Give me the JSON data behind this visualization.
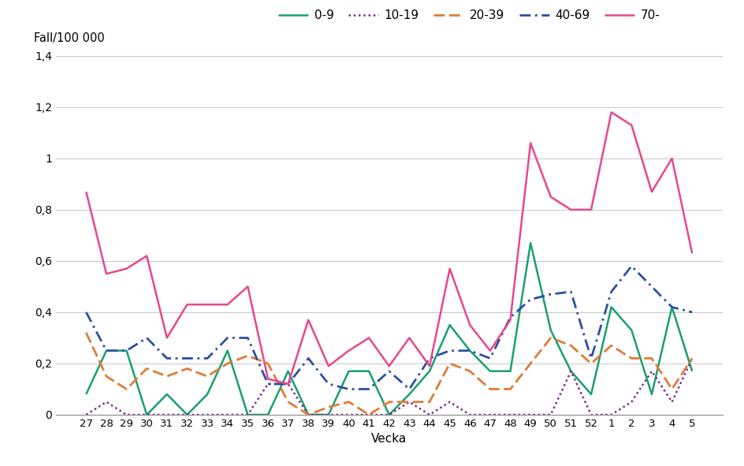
{
  "weeks": [
    "27",
    "28",
    "29",
    "30",
    "31",
    "32",
    "33",
    "34",
    "35",
    "36",
    "37",
    "38",
    "39",
    "40",
    "41",
    "42",
    "43",
    "44",
    "45",
    "46",
    "47",
    "48",
    "49",
    "50",
    "51",
    "52",
    "1",
    "2",
    "3",
    "4",
    "5"
  ],
  "series": {
    "0-9": [
      0.08,
      0.25,
      0.25,
      0.0,
      0.08,
      0.0,
      0.08,
      0.25,
      0.0,
      0.0,
      0.17,
      0.0,
      0.0,
      0.17,
      0.17,
      0.0,
      0.08,
      0.17,
      0.35,
      0.25,
      0.17,
      0.17,
      0.67,
      0.33,
      0.17,
      0.08,
      0.42,
      0.33,
      0.08,
      0.42,
      0.17
    ],
    "10-19": [
      0.0,
      0.05,
      0.0,
      0.0,
      0.0,
      0.0,
      0.0,
      0.0,
      0.0,
      0.12,
      0.12,
      0.0,
      0.0,
      0.0,
      0.0,
      0.0,
      0.05,
      0.0,
      0.05,
      0.0,
      0.0,
      0.0,
      0.0,
      0.0,
      0.17,
      0.0,
      0.0,
      0.05,
      0.17,
      0.05,
      0.22
    ],
    "20-39": [
      0.32,
      0.15,
      0.1,
      0.18,
      0.15,
      0.18,
      0.15,
      0.2,
      0.23,
      0.2,
      0.05,
      0.0,
      0.03,
      0.05,
      0.0,
      0.05,
      0.05,
      0.05,
      0.2,
      0.17,
      0.1,
      0.1,
      0.2,
      0.3,
      0.27,
      0.2,
      0.27,
      0.22,
      0.22,
      0.1,
      0.22
    ],
    "40-69": [
      0.4,
      0.25,
      0.25,
      0.3,
      0.22,
      0.22,
      0.22,
      0.3,
      0.3,
      0.12,
      0.12,
      0.22,
      0.12,
      0.1,
      0.1,
      0.17,
      0.1,
      0.22,
      0.25,
      0.25,
      0.22,
      0.38,
      0.45,
      0.47,
      0.48,
      0.22,
      0.48,
      0.58,
      0.5,
      0.42,
      0.4
    ],
    "70-": [
      0.87,
      0.55,
      0.57,
      0.62,
      0.3,
      0.43,
      0.43,
      0.43,
      0.5,
      0.14,
      0.12,
      0.37,
      0.19,
      0.25,
      0.3,
      0.19,
      0.3,
      0.19,
      0.57,
      0.35,
      0.25,
      0.37,
      1.06,
      0.85,
      0.8,
      0.8,
      1.18,
      1.13,
      0.87,
      1.0,
      0.63
    ]
  },
  "colors": {
    "0-9": "#1a9f6e",
    "10-19": "#7b2d8b",
    "20-39": "#e07b39",
    "40-69": "#2c4fa3",
    "70-": "#e8478b"
  },
  "series_order": [
    "0-9",
    "10-19",
    "20-39",
    "40-69",
    "70-"
  ],
  "ylabel_text": "Fall/100 000",
  "xlabel": "Vecka",
  "ylim": [
    0,
    1.4
  ],
  "yticks": [
    0,
    0.2,
    0.4,
    0.6,
    0.8,
    1.0,
    1.2,
    1.4
  ],
  "ytick_labels": [
    "0",
    "0,2",
    "0,4",
    "0,6",
    "0,8",
    "1",
    "1,2",
    "1,4"
  ],
  "background_color": "#ffffff"
}
